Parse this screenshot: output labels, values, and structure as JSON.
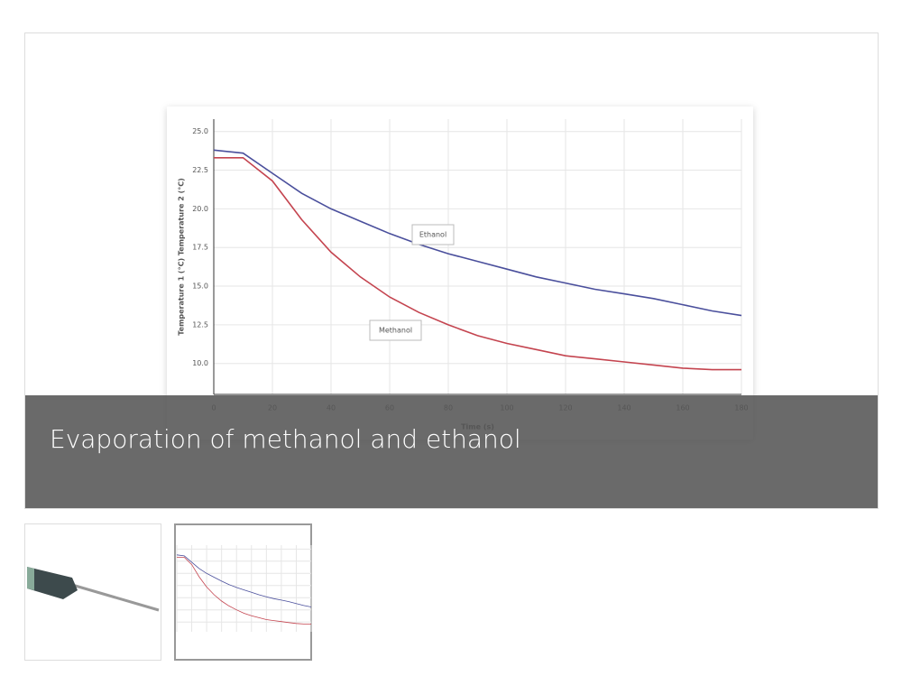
{
  "chart_data": {
    "type": "line",
    "x": [
      0,
      10,
      20,
      30,
      40,
      50,
      60,
      70,
      80,
      90,
      100,
      110,
      120,
      130,
      140,
      150,
      160,
      170,
      180
    ],
    "series": [
      {
        "name": "Ethanol",
        "color": "#4a4f9c",
        "values": [
          23.8,
          23.6,
          22.3,
          21.0,
          20.0,
          19.2,
          18.4,
          17.7,
          17.1,
          16.6,
          16.1,
          15.6,
          15.2,
          14.8,
          14.5,
          14.2,
          13.8,
          13.4,
          13.1
        ]
      },
      {
        "name": "Methanol",
        "color": "#c4444f",
        "values": [
          23.3,
          23.3,
          21.8,
          19.3,
          17.2,
          15.6,
          14.3,
          13.3,
          12.5,
          11.8,
          11.3,
          10.9,
          10.5,
          10.3,
          10.1,
          9.9,
          9.7,
          9.6,
          9.6
        ]
      }
    ],
    "x_label": "Time (s)",
    "y_label": "Temperature 1 (°C) Temperature 2 (°C)",
    "xlim": [
      0,
      180
    ],
    "xticks": [
      0,
      20,
      40,
      60,
      80,
      100,
      120,
      140,
      160,
      180
    ],
    "ylim": [
      8.0,
      25.8
    ],
    "yticks": [
      {
        "value": 10,
        "label": "10.0"
      },
      12.5,
      {
        "value": 15,
        "label": "15.0"
      },
      17.5,
      {
        "value": 20,
        "label": "20.0"
      },
      22.5,
      {
        "value": 25,
        "label": "25.0"
      }
    ],
    "grid": true
  },
  "caption": "Evaporation of methanol and ethanol"
}
